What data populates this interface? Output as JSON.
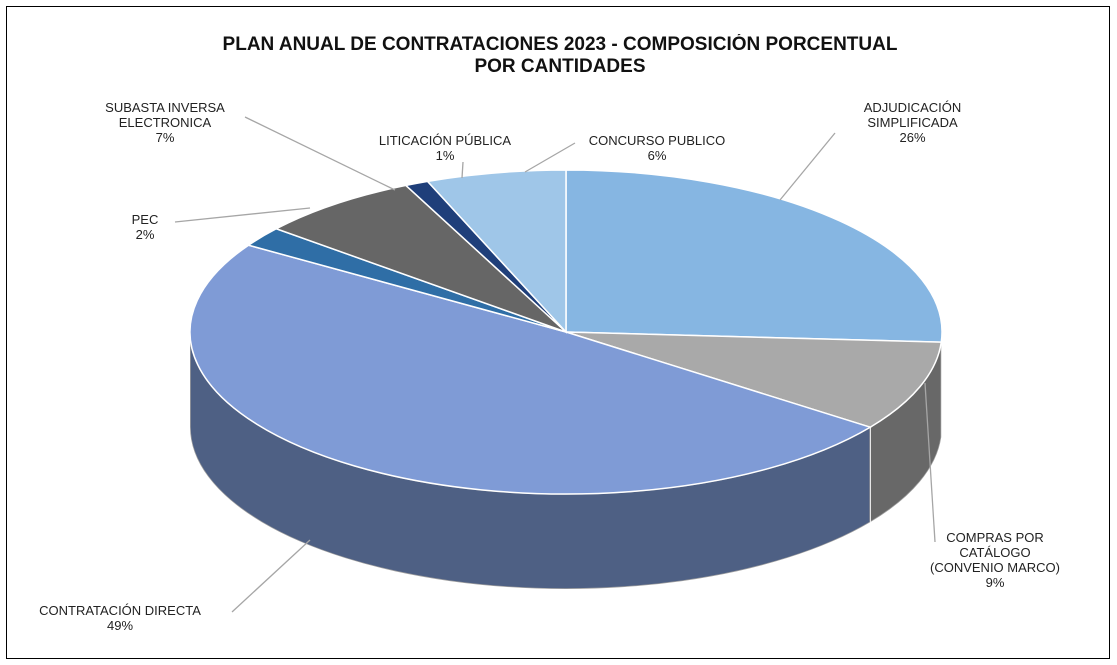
{
  "chart_data": {
    "type": "pie",
    "title": "PLAN ANUAL DE CONTRATACIONES 2023 - COMPOSICIÓN PORCENTUAL POR CANTIDADES",
    "categories": [
      "ADJUDICACIÓN SIMPLIFICADA",
      "COMPRAS POR CATÁLOGO (CONVENIO MARCO)",
      "CONTRATACIÓN DIRECTA",
      "PEC",
      "SUBASTA INVERSA ELECTRONICA",
      "LITICACIÓN PÚBLICA",
      "CONCURSO PUBLICO"
    ],
    "values": [
      26,
      9,
      49,
      2,
      7,
      1,
      6
    ],
    "value_labels": [
      "26%",
      "9%",
      "49%",
      "2%",
      "7%",
      "1%",
      "6%"
    ],
    "colors": [
      "#86b6e2",
      "#a9a9a9",
      "#7f9bd6",
      "#2f6ea6",
      "#666666",
      "#1f3f7a",
      "#9fc6e8"
    ]
  }
}
